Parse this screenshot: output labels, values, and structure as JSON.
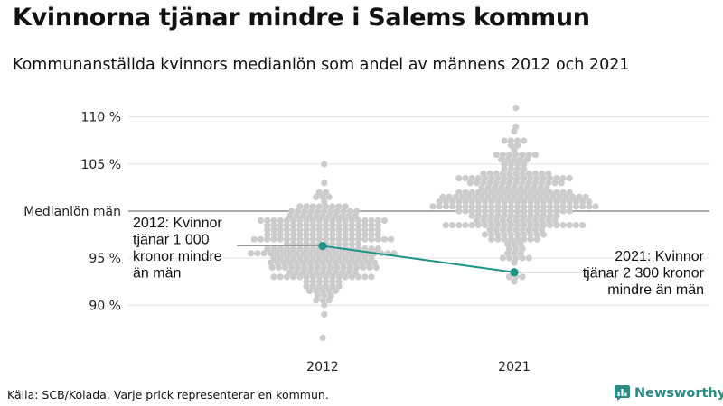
{
  "title": "Kvinnorna tjänar mindre i Salems kommun",
  "subtitle": "Kommunanställda kvinnors medianlön som andel av männens 2012 och 2021",
  "source": "Källa: SCB/Kolada. Varje prick representerar en kommun.",
  "brand": "Newsworthy",
  "colors": {
    "dot": "#cccccc",
    "highlight": "#1f9287",
    "grid": "#e3e3e3",
    "reference": "#555555",
    "brand": "#2a8c84"
  },
  "chart_data": {
    "type": "scatter",
    "subtype": "beeswarm",
    "title": "Kvinnorna tjänar mindre i Salems kommun",
    "subtitle": "Kommunanställda kvinnors medianlön som andel av männens 2012 och 2021",
    "categories": [
      "2012",
      "2021"
    ],
    "ylim": [
      86,
      111.5
    ],
    "yticks": [
      {
        "value": 90,
        "label": "90 %"
      },
      {
        "value": 95,
        "label": "95 %"
      },
      {
        "value": 105,
        "label": "105 %"
      },
      {
        "value": 110,
        "label": "110 %"
      }
    ],
    "reference_line": {
      "value": 100,
      "label": "Medianlön män"
    },
    "distributions": [
      {
        "category": "2012",
        "n": 290,
        "median": 96.2,
        "spread": 2.7,
        "min": 86.5,
        "max": 105.2
      },
      {
        "category": "2021",
        "n": 290,
        "median": 101.0,
        "spread": 2.8,
        "min": 92.5,
        "max": 111.2
      }
    ],
    "highlight": {
      "name": "Salem",
      "points": [
        {
          "category": "2012",
          "value": 96.3
        },
        {
          "category": "2021",
          "value": 93.5
        }
      ]
    },
    "annotations": [
      {
        "category": "2012",
        "lines": [
          "2012: Kvinnor",
          "tjänar 1 000",
          "kronor mindre",
          "än män"
        ]
      },
      {
        "category": "2021",
        "lines": [
          "2021: Kvinnor",
          "tjänar 2 300 kronor",
          "mindre än män"
        ]
      }
    ]
  }
}
